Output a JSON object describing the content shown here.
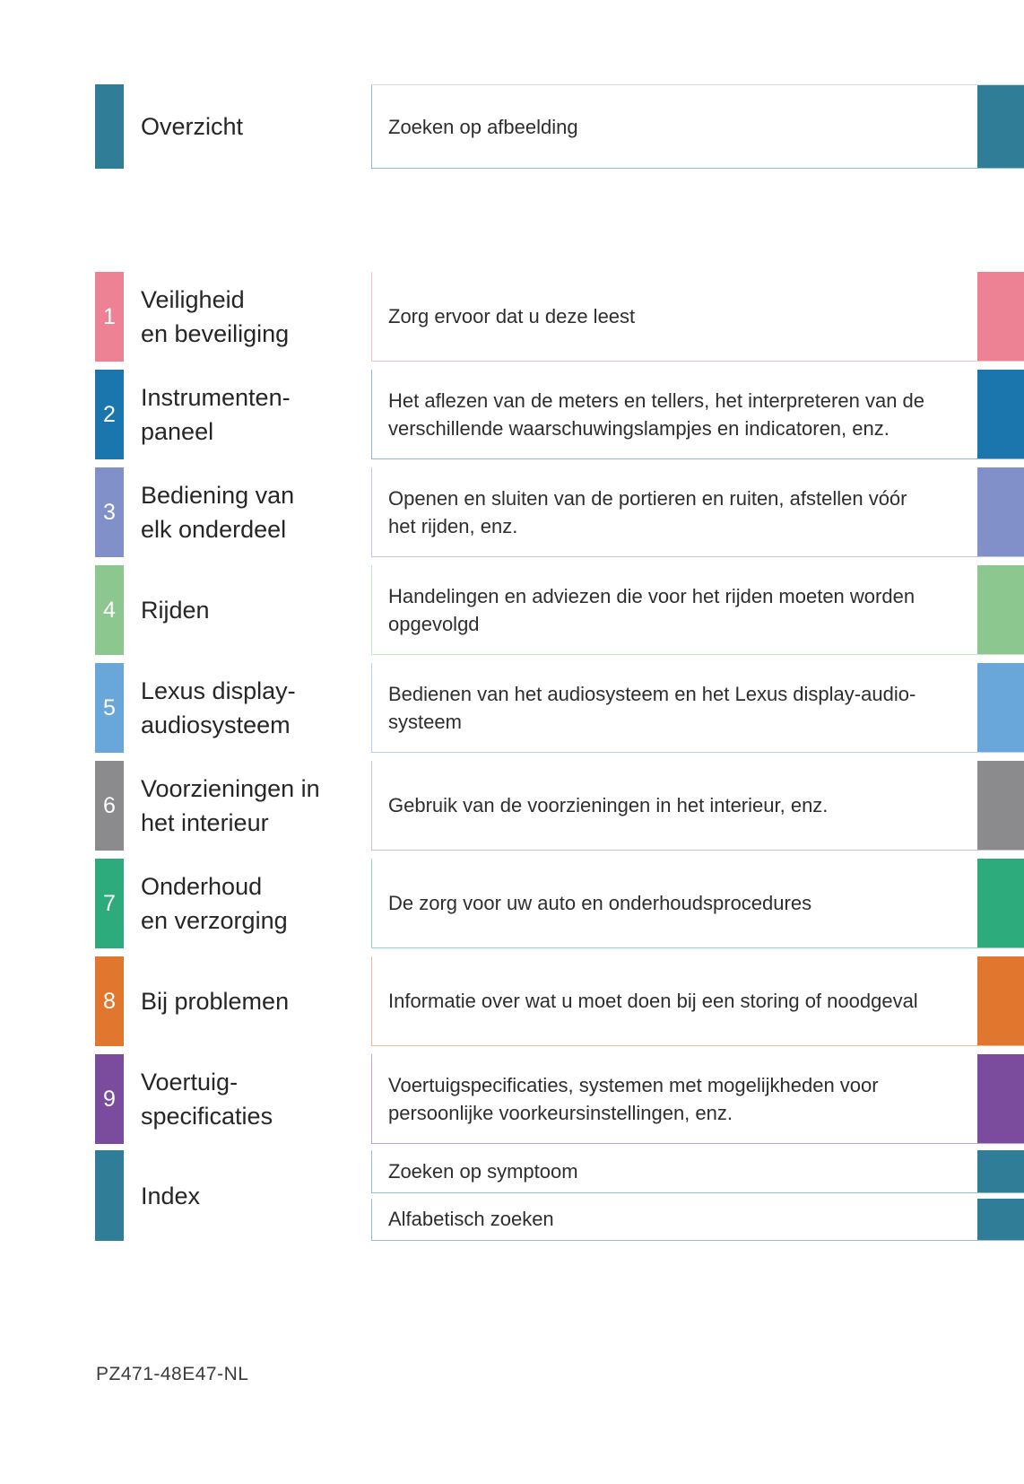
{
  "page": {
    "footer_code": "PZ471-48E47-NL",
    "background": "#ffffff"
  },
  "overview": {
    "title": "Overzicht",
    "description": "Zoeken op afbeelding",
    "accent": "#2F7D96"
  },
  "sections": [
    {
      "number": "1",
      "title": "Veiligheid\nen beveiliging",
      "description": "Zorg ervoor dat u deze leest",
      "accent": "#EC8293"
    },
    {
      "number": "2",
      "title": "Instrumenten-\npaneel",
      "description": "Het aflezen van de meters en tellers, het interpreteren van de\nverschillende waarschuwingslampjes en indicatoren, enz.",
      "accent": "#1C76AE"
    },
    {
      "number": "3",
      "title": "Bediening van\nelk onderdeel",
      "description": "Openen en sluiten van de portieren en ruiten, afstellen vóór\nhet rijden, enz.",
      "accent": "#8290CA"
    },
    {
      "number": "4",
      "title": "Rijden",
      "description": "Handelingen en adviezen die voor het rijden moeten worden\nopgevolgd",
      "accent": "#8BC78F"
    },
    {
      "number": "5",
      "title": "Lexus display-\naudiosysteem",
      "description": "Bedienen van het audiosysteem en het Lexus display-audio-\nsysteem",
      "accent": "#69A7DB"
    },
    {
      "number": "6",
      "title": "Voorzieningen in\nhet interieur",
      "description": "Gebruik van de voorzieningen in het interieur, enz.",
      "accent": "#8B8B8D"
    },
    {
      "number": "7",
      "title": "Onderhoud\nen verzorging",
      "description": "De zorg voor uw auto en onderhoudsprocedures",
      "accent": "#2EAB7D"
    },
    {
      "number": "8",
      "title": "Bij problemen",
      "description": "Informatie over wat u moet doen bij een storing of noodgeval",
      "accent": "#E1772E"
    },
    {
      "number": "9",
      "title": "Voertuig-\nspecificaties",
      "description": "Voertuigspecificaties, systemen met mogelijkheden voor\npersoonlijke voorkeursinstellingen, enz.",
      "accent": "#7B4C9E"
    }
  ],
  "index": {
    "title": "Index",
    "accent": "#2F7D96",
    "items": [
      {
        "label": "Zoeken op symptoom"
      },
      {
        "label": "Alfabetisch zoeken"
      }
    ]
  }
}
